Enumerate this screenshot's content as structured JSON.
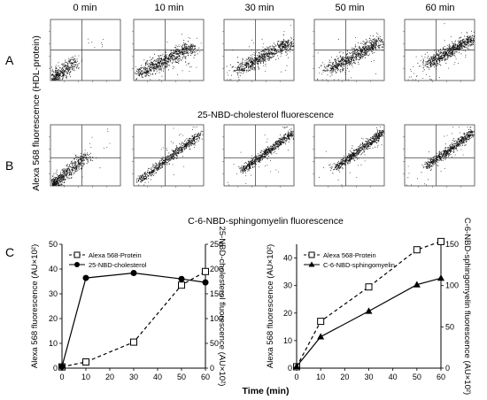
{
  "panels": {
    "a_letter": "A",
    "b_letter": "B",
    "c_letter": "C"
  },
  "time_labels": [
    "0 min",
    "10 min",
    "30 min",
    "50 min",
    "60 min"
  ],
  "row_a": {
    "xlabel": "25-NBD-cholesterol fluorescence"
  },
  "row_b": {
    "xlabel": "C-6-NBD-sphingomyelin fluorescence"
  },
  "shared_ylabel": "Alexa 568 fluorescence (HDL-protein)",
  "footer": {
    "xlabel": "Time (min)"
  },
  "chart_data": [
    {
      "type": "line",
      "panel": "C-left",
      "x": [
        0,
        10,
        30,
        50,
        60
      ],
      "xlim": [
        0,
        60
      ],
      "xticks": [
        0,
        10,
        20,
        30,
        40,
        50,
        60
      ],
      "ylabel": "Alexa 568 fluorescence (AU×10²)",
      "ylabel_right": "25-NBD-cholesterol fluorescence (AU×10²)",
      "ylim": [
        0,
        50
      ],
      "yticks": [
        0,
        10,
        20,
        30,
        40,
        50
      ],
      "ylim_right": [
        0,
        250
      ],
      "yticks_right": [
        0,
        50,
        100,
        150,
        200,
        250
      ],
      "legend_position": "top-left",
      "series": [
        {
          "name": "Alexa 568-Protein",
          "axis": "left",
          "marker": "open-square",
          "line": "dashed",
          "values": [
            0.5,
            2.5,
            10.5,
            33.5,
            39
          ]
        },
        {
          "name": "25-NBD-cholesterol",
          "axis": "right",
          "marker": "filled-circle",
          "line": "solid",
          "values": [
            3,
            182,
            192,
            180,
            173
          ]
        }
      ]
    },
    {
      "type": "line",
      "panel": "C-right",
      "x": [
        0,
        10,
        30,
        50,
        60
      ],
      "xlim": [
        0,
        60
      ],
      "xticks": [
        0,
        10,
        20,
        30,
        40,
        50,
        60
      ],
      "ylabel": "Alexa 568 fluorescence (AU×10²)",
      "ylabel_right": "C-6-NBD-sphingomyelin fluorescence (AU×10²)",
      "ylim": [
        0,
        45
      ],
      "yticks": [
        0,
        10,
        20,
        30,
        40
      ],
      "ylim_right": [
        0,
        150
      ],
      "yticks_right": [
        0,
        50,
        100,
        150
      ],
      "legend_position": "top-left",
      "series": [
        {
          "name": "Alexa 568-Protein",
          "axis": "left",
          "marker": "open-square",
          "line": "dashed",
          "values": [
            0.5,
            17,
            29.5,
            43,
            46
          ]
        },
        {
          "name": "C-6-NBD-sphingomyelin",
          "axis": "right",
          "marker": "filled-triangle",
          "line": "solid",
          "values": [
            2,
            38,
            69,
            101,
            109
          ]
        }
      ]
    }
  ]
}
